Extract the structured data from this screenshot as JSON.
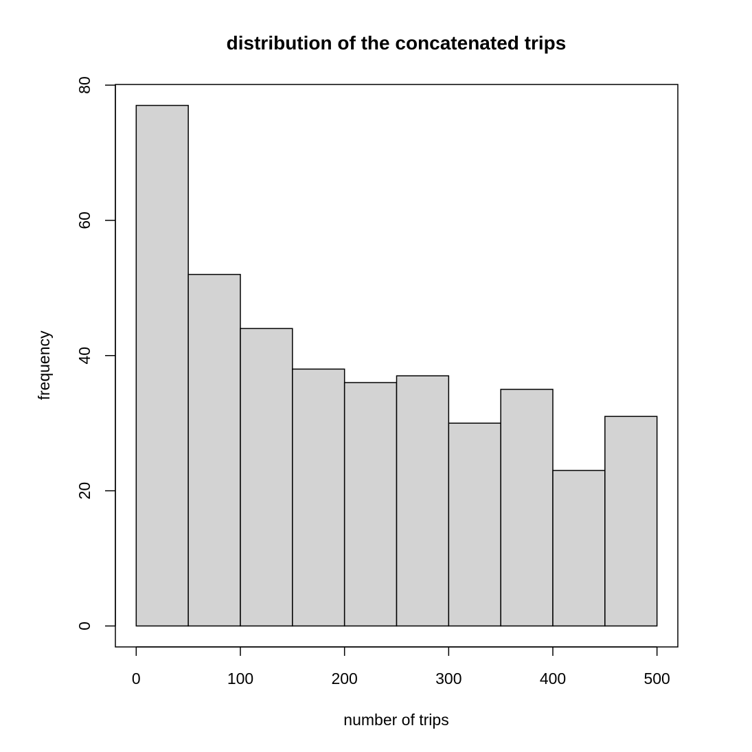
{
  "chart_data": {
    "type": "bar",
    "title": "distribution of the concatenated trips",
    "xlabel": "number of trips",
    "ylabel": "frequency",
    "bins": [
      {
        "from": 0,
        "to": 50,
        "count": 77
      },
      {
        "from": 50,
        "to": 100,
        "count": 52
      },
      {
        "from": 100,
        "to": 150,
        "count": 44
      },
      {
        "from": 150,
        "to": 200,
        "count": 38
      },
      {
        "from": 200,
        "to": 250,
        "count": 36
      },
      {
        "from": 250,
        "to": 300,
        "count": 37
      },
      {
        "from": 300,
        "to": 350,
        "count": 30
      },
      {
        "from": 350,
        "to": 400,
        "count": 35
      },
      {
        "from": 400,
        "to": 450,
        "count": 23
      },
      {
        "from": 450,
        "to": 500,
        "count": 31
      }
    ],
    "xlim": [
      -20,
      520
    ],
    "ylim": [
      -3.1,
      80.1
    ],
    "x_ticks": [
      0,
      100,
      200,
      300,
      400,
      500
    ],
    "y_ticks": [
      0,
      20,
      40,
      60,
      80
    ],
    "bar_color": "#d3d3d3",
    "grid": false
  }
}
